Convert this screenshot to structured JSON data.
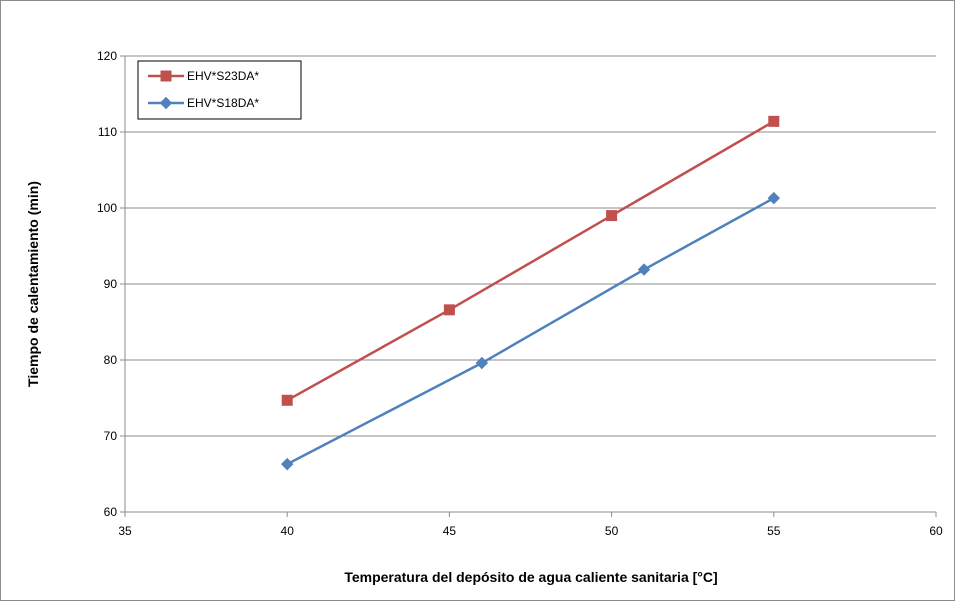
{
  "chart_data": {
    "type": "line",
    "title": "",
    "xlabel": "Temperatura del depósito de agua caliente sanitaria [°C]",
    "ylabel": "Tiempo de calentamiento (min)",
    "xlim": [
      35,
      60
    ],
    "ylim": [
      60,
      120
    ],
    "xticks": [
      35,
      40,
      45,
      50,
      55,
      60
    ],
    "yticks": [
      60,
      70,
      80,
      90,
      100,
      110,
      120
    ],
    "grid": "horizontal",
    "legend_position": "top-left",
    "series": [
      {
        "name": "EHV*S23DA*",
        "color": "#c0504d",
        "marker": "square",
        "x": [
          40,
          45,
          50,
          55
        ],
        "y": [
          74.7,
          86.6,
          99.0,
          111.4
        ]
      },
      {
        "name": "EHV*S18DA*",
        "color": "#4f81bd",
        "marker": "diamond",
        "x": [
          40,
          46,
          51,
          55
        ],
        "y": [
          66.3,
          79.6,
          91.9,
          101.3
        ]
      }
    ]
  }
}
